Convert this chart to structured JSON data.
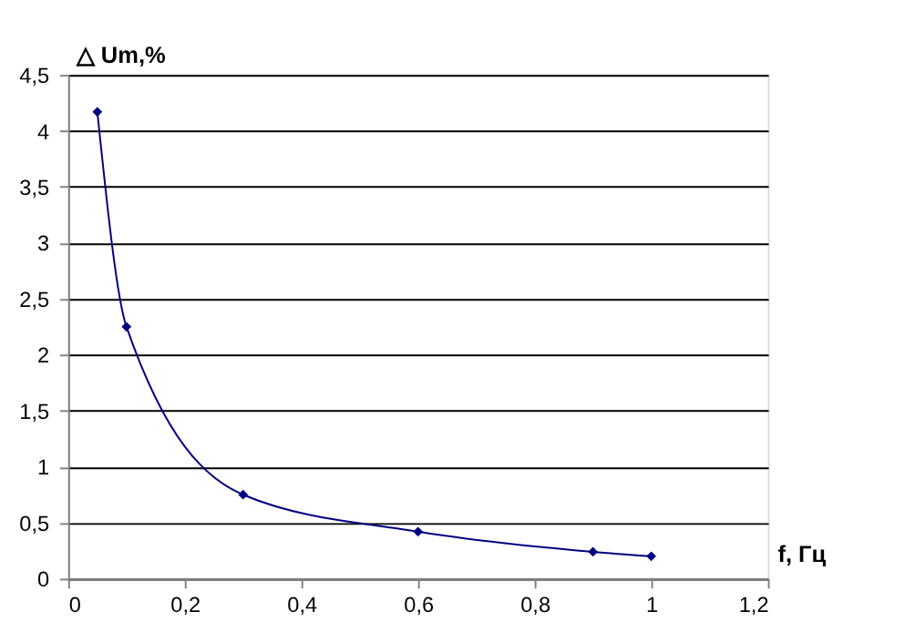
{
  "chart_data": {
    "type": "line",
    "x": [
      0.05,
      0.1,
      0.3,
      0.6,
      0.9,
      1.0
    ],
    "series": [
      {
        "color": "#000080",
        "values": [
          4.17,
          2.25,
          0.75,
          0.42,
          0.24,
          0.2
        ]
      }
    ],
    "xlabel": "f, Гц",
    "ylabel": "△ Um,%",
    "xlim": [
      0,
      1.2
    ],
    "xticks": [
      0,
      {
        "value": 0.2,
        "label": "0,2"
      },
      {
        "value": 0.4,
        "label": "0,4"
      },
      {
        "value": 0.6,
        "label": "0,6"
      },
      {
        "value": 0.8,
        "label": "0,8"
      },
      1,
      {
        "value": 1.2,
        "label": "1,2"
      }
    ],
    "ylim": [
      0,
      4.5
    ],
    "yticks": [
      0,
      {
        "value": 0.5,
        "label": "0,5"
      },
      1,
      {
        "value": 1.5,
        "label": "1,5"
      },
      2,
      {
        "value": 2.5,
        "label": "2,5"
      },
      3,
      {
        "value": 3.5,
        "label": "3,5"
      },
      4,
      {
        "value": 4.5,
        "label": "4,5"
      }
    ],
    "grid": "y",
    "marker": "diamond",
    "line_style": "solid",
    "legend": false
  }
}
